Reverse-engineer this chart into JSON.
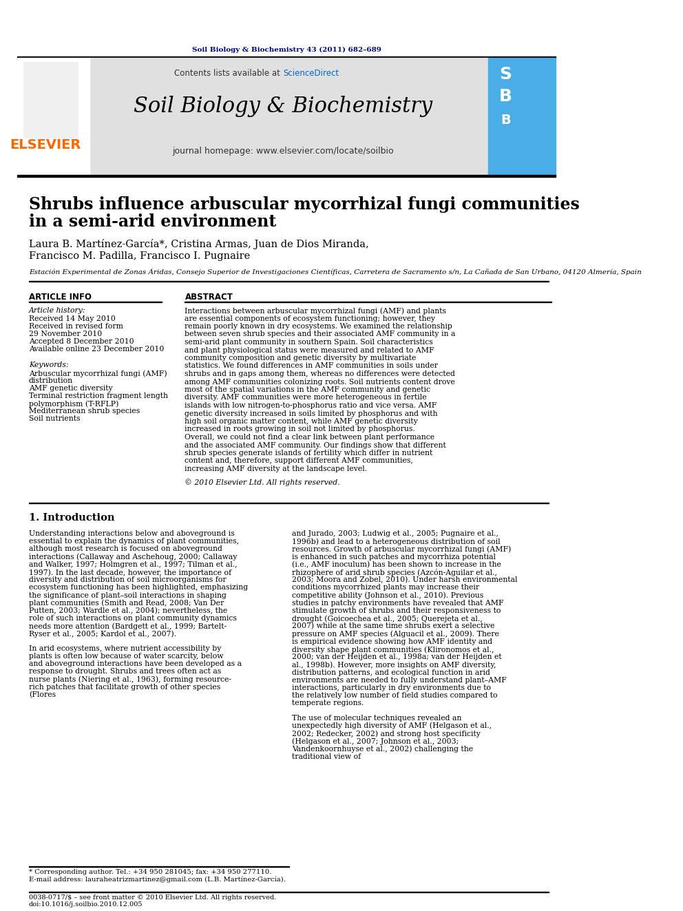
{
  "page_title": "Soil Biology & Biochemistry 43 (2011) 682–689",
  "journal_name": "Soil Biology & Biochemistry",
  "journal_url": "journal homepage: www.elsevier.com/locate/soilbio",
  "contents_text": "Contents lists available at ScienceDirect",
  "elsevier_text": "ELSEVIER",
  "paper_title_line1": "Shrubs influence arbuscular mycorrhizal fungi communities",
  "paper_title_line2": "in a semi-arid environment",
  "authors_line1": "Laura B. Martínez-García*, Cristina Armas, Juan de Dios Miranda,",
  "authors_line2": "Francisco M. Padilla, Francisco I. Pugnaire",
  "affiliation": "Estación Experimental de Zonas Áridas, Consejo Superior de Investigaciones Científicas, Carretera de Sacramento s/n, La Cañada de San Urbano, 04120 Almería, Spain",
  "article_info_header": "ARTICLE INFO",
  "abstract_header": "ABSTRACT",
  "article_history_label": "Article history:",
  "received_text": "Received 14 May 2010",
  "received_revised_text": "Received in revised form",
  "date1": "29 November 2010",
  "accepted_text": "Accepted 8 December 2010",
  "available_text": "Available online 23 December 2010",
  "keywords_label": "Keywords:",
  "keyword1": "Arbuscular mycorrhizal fungi (AMF)",
  "keyword2": "distribution",
  "keyword3": "AMF genetic diversity",
  "keyword4": "Terminal restriction fragment length",
  "keyword5": "polymorphism (T-RFLP)",
  "keyword6": "Mediterranean shrub species",
  "keyword7": "Soil nutrients",
  "abstract_text": "Interactions between arbuscular mycorrhizal fungi (AMF) and plants are essential components of ecosystem functioning; however, they remain poorly known in dry ecosystems. We examined the relationship between seven shrub species and their associated AMF community in a semi-arid plant community in southern Spain. Soil characteristics and plant physiological status were measured and related to AMF community composition and genetic diversity by multivariate statistics. We found differences in AMF communities in soils under shrubs and in gaps among them, whereas no differences were detected among AMF communities colonizing roots. Soil nutrients content drove most of the spatial variations in the AMF community and genetic diversity. AMF communities were more heterogeneous in fertile islands with low nitrogen-to-phosphorus ratio and vice versa. AMF genetic diversity increased in soils limited by phosphorus and with high soil organic matter content, while AMF genetic diversity increased in roots growing in soil not limited by phosphorus. Overall, we could not find a clear link between plant performance and the associated AMF community. Our findings show that different shrub species generate islands of fertility which differ in nutrient content and, therefore, support different AMF communities, increasing AMF diversity at the landscape level.",
  "copyright_text": "© 2010 Elsevier Ltd. All rights reserved.",
  "section1_title": "1. Introduction",
  "intro_col1_para1": "Understanding interactions below and aboveground is essential to explain the dynamics of plant communities, although most research is focused on aboveground interactions (Callaway and Aschehoug, 2000; Callaway and Walker, 1997; Holmgren et al., 1997; Tilman et al., 1997). In the last decade, however, the importance of diversity and distribution of soil microorganisms for ecosystem functioning has been highlighted, emphasizing the significance of plant–soil interactions in shaping plant communities (Smith and Read, 2008; Van Der Putten, 2003; Wardle et al., 2004); nevertheless, the role of such interactions on plant community dynamics needs more attention (Bardgett et al., 1999; Bartelt-Ryser et al., 2005; Kardol et al., 2007).",
  "intro_col1_para2": "In arid ecosystems, where nutrient accessibility by plants is often low because of water scarcity, below and aboveground interactions have been developed as a response to drought. Shrubs and trees often act as nurse plants (Niering et al., 1963), forming resource-rich patches that facilitate growth of other species (Flores",
  "intro_col2_para1": "and Jurado, 2003; Ludwig et al., 2005; Pugnaire et al., 1996b) and lead to a heterogeneous distribution of soil resources. Growth of arbuscular mycorrhizal fungi (AMF) is enhanced in such patches and mycorrhiza potential (i.e., AMF inoculum) has been shown to increase in the rhizophere of arid shrub species (Azcón-Aguilar et al., 2003; Moora and Zobel, 2010). Under harsh environmental conditions mycorrhized plants may increase their competitive ability (Johnson et al., 2010). Previous studies in patchy environments have revealed that AMF stimulate growth of shrubs and their responsiveness to drought (Goicoechea et al., 2005; Querejeta et al., 2007) while at the same time shrubs exert a selective pressure on AMF species (Alguacil et al., 2009). There is empirical evidence showing how AMF identity and diversity shape plant communities (Klironomos et al., 2000; van der Heijden et al., 1998a; van der Heijden et al., 1998b). However, more insights on AMF diversity, distribution patterns, and ecological function in arid environments are needed to fully understand plant–AMF interactions, particularly in dry environments due to the relatively low number of field studies compared to temperate regions.",
  "intro_col2_para2": "The use of molecular techniques revealed an unexpectedly high diversity of AMF (Helgason et al., 2002; Redecker, 2002) and strong host specificity (Helgason et al., 2007; Johnson et al., 2003; Vandenkoornhuyse et al., 2002) challenging the traditional view of",
  "footnote1": "* Corresponding author. Tel.: +34 950 281045; fax: +34 950 277110.",
  "footnote2": "E-mail address: lauraheatrizmartinez@gmail.com (L.B. Martínez-García).",
  "footer_text": "0038-0717/$ – see front matter © 2010 Elsevier Ltd. All rights reserved.",
  "doi_text": "doi:10.1016/j.soilbio.2010.12.005",
  "colors": {
    "dark_navy": "#000080",
    "orange": "#FF6600",
    "black": "#000000",
    "dark_gray": "#333333",
    "light_gray": "#E8E8E8",
    "header_bg": "#E0E0E0",
    "sciencedirect_blue": "#0066CC",
    "line_color": "#000000"
  }
}
